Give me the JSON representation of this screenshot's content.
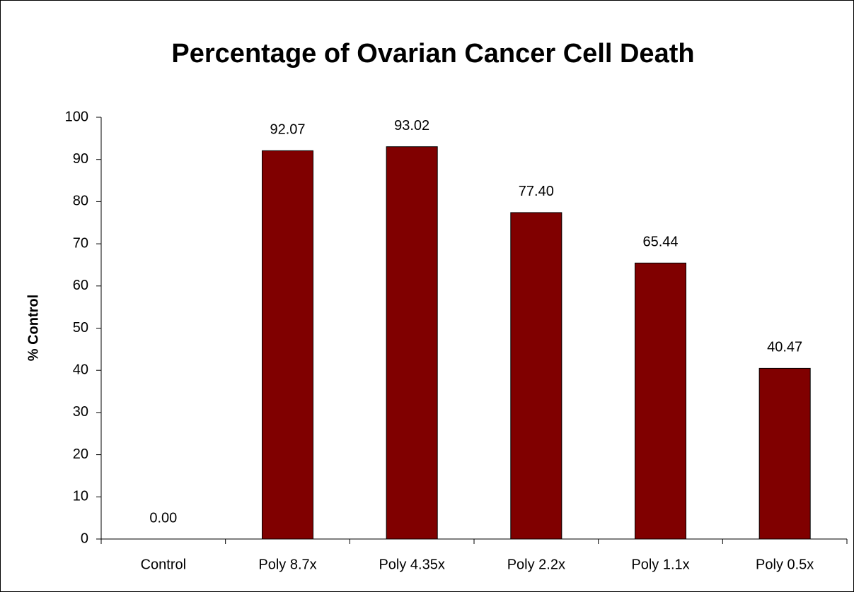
{
  "chart_data": {
    "type": "bar",
    "title": "Percentage of Ovarian Cancer Cell Death",
    "y_label": "% Control",
    "categories": [
      "Control",
      "Poly 8.7x",
      "Poly 4.35x",
      "Poly 2.2x",
      "Poly 1.1x",
      "Poly 0.5x"
    ],
    "values": [
      0,
      92.07,
      93.02,
      77.4,
      65.44,
      40.47
    ],
    "value_labels": [
      "0.00",
      "92.07",
      "93.02",
      "77.40",
      "65.44",
      "40.47"
    ],
    "color": "#800000",
    "ylim": [
      0,
      100
    ],
    "yticks": [
      0,
      10,
      20,
      30,
      40,
      50,
      60,
      70,
      80,
      90,
      100
    ],
    "grid": false
  }
}
